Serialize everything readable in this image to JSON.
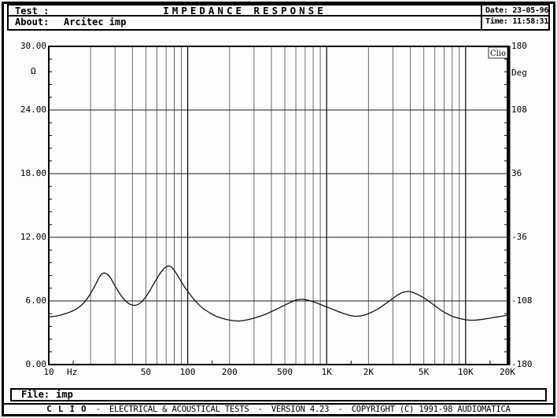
{
  "header": {
    "test_label": "Test :",
    "title": "IMPEDANCE RESPONSE",
    "about_label": "About:",
    "about_value": "Arcitec imp",
    "date_label": "Date:",
    "date_value": "23-05-96",
    "time_label": "Time:",
    "time_value": "11:58:31"
  },
  "chart": {
    "watermark": "Clio",
    "left_axis": {
      "unit": "Ω",
      "labels": [
        "30.00",
        "24.00",
        "18.00",
        "12.00",
        "6.00",
        "0.00"
      ],
      "min": 0,
      "max": 30,
      "major_step": 6
    },
    "right_axis": {
      "unit": "Deg",
      "labels": [
        "180",
        "108",
        "36",
        "-36",
        "-108",
        "-180"
      ],
      "min": -180,
      "max": 180,
      "major_step": 72
    },
    "x_axis": {
      "unit": "Hz",
      "min": 10,
      "max": 20000,
      "scale": "log",
      "tick_labels": [
        {
          "label": "10",
          "f": 10
        },
        {
          "label": "Hz"
        },
        {
          "label": "50",
          "f": 50
        },
        {
          "label": "100",
          "f": 100
        },
        {
          "label": "200",
          "f": 200
        },
        {
          "label": "500",
          "f": 500
        },
        {
          "label": "1K",
          "f": 1000
        },
        {
          "label": "2K",
          "f": 2000
        },
        {
          "label": "5K",
          "f": 5000
        },
        {
          "label": "10K",
          "f": 10000
        },
        {
          "label": "20K",
          "f": 20000
        }
      ]
    }
  },
  "chart_data": {
    "type": "line",
    "title": "IMPEDANCE RESPONSE",
    "xlabel": "Hz",
    "ylabel": "Ohm",
    "x_scale": "log",
    "xlim": [
      10,
      20000
    ],
    "ylim": [
      0,
      30
    ],
    "right_axis_label": "Deg",
    "right_ylim": [
      -180,
      180
    ],
    "grid": true,
    "series": [
      {
        "name": "impedance-magnitude",
        "points": [
          [
            10,
            4.5
          ],
          [
            11,
            4.55
          ],
          [
            12,
            4.65
          ],
          [
            13,
            4.78
          ],
          [
            14,
            4.92
          ],
          [
            15,
            5.08
          ],
          [
            16,
            5.28
          ],
          [
            17,
            5.55
          ],
          [
            18,
            5.85
          ],
          [
            19,
            6.25
          ],
          [
            20,
            6.7
          ],
          [
            21,
            7.2
          ],
          [
            22,
            7.7
          ],
          [
            23,
            8.2
          ],
          [
            24,
            8.55
          ],
          [
            25,
            8.65
          ],
          [
            26,
            8.58
          ],
          [
            27,
            8.4
          ],
          [
            28,
            8.1
          ],
          [
            30,
            7.4
          ],
          [
            32,
            6.8
          ],
          [
            34,
            6.3
          ],
          [
            36,
            5.95
          ],
          [
            38,
            5.72
          ],
          [
            40,
            5.6
          ],
          [
            42,
            5.58
          ],
          [
            44,
            5.68
          ],
          [
            46,
            5.85
          ],
          [
            48,
            6.1
          ],
          [
            50,
            6.4
          ],
          [
            53,
            6.9
          ],
          [
            56,
            7.45
          ],
          [
            60,
            8.1
          ],
          [
            64,
            8.7
          ],
          [
            68,
            9.1
          ],
          [
            72,
            9.3
          ],
          [
            76,
            9.22
          ],
          [
            80,
            8.9
          ],
          [
            85,
            8.35
          ],
          [
            90,
            7.8
          ],
          [
            95,
            7.3
          ],
          [
            100,
            6.9
          ],
          [
            110,
            6.2
          ],
          [
            120,
            5.65
          ],
          [
            130,
            5.25
          ],
          [
            145,
            4.85
          ],
          [
            160,
            4.55
          ],
          [
            175,
            4.38
          ],
          [
            190,
            4.25
          ],
          [
            210,
            4.15
          ],
          [
            230,
            4.1
          ],
          [
            250,
            4.15
          ],
          [
            275,
            4.25
          ],
          [
            300,
            4.38
          ],
          [
            330,
            4.55
          ],
          [
            365,
            4.75
          ],
          [
            400,
            5.0
          ],
          [
            440,
            5.25
          ],
          [
            480,
            5.5
          ],
          [
            520,
            5.72
          ],
          [
            560,
            5.92
          ],
          [
            600,
            6.08
          ],
          [
            640,
            6.15
          ],
          [
            680,
            6.15
          ],
          [
            730,
            6.08
          ],
          [
            790,
            5.95
          ],
          [
            860,
            5.78
          ],
          [
            950,
            5.55
          ],
          [
            1050,
            5.32
          ],
          [
            1150,
            5.12
          ],
          [
            1300,
            4.85
          ],
          [
            1450,
            4.65
          ],
          [
            1600,
            4.55
          ],
          [
            1750,
            4.58
          ],
          [
            1900,
            4.7
          ],
          [
            2100,
            4.92
          ],
          [
            2350,
            5.25
          ],
          [
            2600,
            5.65
          ],
          [
            2900,
            6.1
          ],
          [
            3200,
            6.52
          ],
          [
            3500,
            6.8
          ],
          [
            3800,
            6.9
          ],
          [
            4100,
            6.85
          ],
          [
            4500,
            6.62
          ],
          [
            5000,
            6.3
          ],
          [
            5500,
            5.92
          ],
          [
            6000,
            5.55
          ],
          [
            6600,
            5.15
          ],
          [
            7200,
            4.85
          ],
          [
            8000,
            4.55
          ],
          [
            9000,
            4.35
          ],
          [
            10000,
            4.22
          ],
          [
            11000,
            4.18
          ],
          [
            12000,
            4.2
          ],
          [
            13500,
            4.28
          ],
          [
            15000,
            4.38
          ],
          [
            17000,
            4.5
          ],
          [
            19000,
            4.6
          ],
          [
            20000,
            4.65
          ]
        ]
      }
    ]
  },
  "footer": {
    "file_label": "File:",
    "file_value": "imp",
    "brand": "C L I O",
    "separator": "-",
    "product": "ELECTRICAL & ACOUSTICAL TESTS",
    "version": "VERSION 4.23",
    "copyright": "COPYRIGHT (C) 1991-98 AUDIOMATICA"
  },
  "colors": {
    "frame": "#000000",
    "background": "#fdfdfd",
    "grid_major": "#000000",
    "grid_minor": "#6b6b6b",
    "curve": "#141414"
  }
}
